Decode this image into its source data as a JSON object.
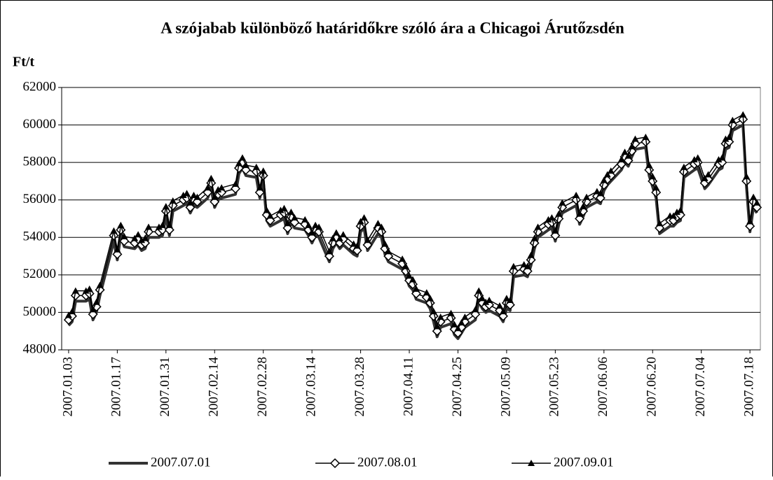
{
  "chart_data": {
    "type": "line",
    "title": "A szójabab különböző határidőkre szóló ára a Chicagoi Árutőzsdén",
    "y_label": "Ft/t",
    "x": [
      "2007.01.03",
      "2007.01.04",
      "2007.01.05",
      "2007.01.08",
      "2007.01.09",
      "2007.01.10",
      "2007.01.11",
      "2007.01.12",
      "2007.01.16",
      "2007.01.17",
      "2007.01.18",
      "2007.01.19",
      "2007.01.22",
      "2007.01.23",
      "2007.01.24",
      "2007.01.25",
      "2007.01.26",
      "2007.01.29",
      "2007.01.30",
      "2007.01.31",
      "2007.02.01",
      "2007.02.02",
      "2007.02.05",
      "2007.02.06",
      "2007.02.07",
      "2007.02.08",
      "2007.02.09",
      "2007.02.12",
      "2007.02.13",
      "2007.02.14",
      "2007.02.15",
      "2007.02.16",
      "2007.02.20",
      "2007.02.21",
      "2007.02.22",
      "2007.02.23",
      "2007.02.26",
      "2007.02.27",
      "2007.02.28",
      "2007.03.01",
      "2007.03.02",
      "2007.03.05",
      "2007.03.06",
      "2007.03.07",
      "2007.03.08",
      "2007.03.09",
      "2007.03.12",
      "2007.03.13",
      "2007.03.14",
      "2007.03.15",
      "2007.03.16",
      "2007.03.19",
      "2007.03.20",
      "2007.03.21",
      "2007.03.22",
      "2007.03.23",
      "2007.03.26",
      "2007.03.27",
      "2007.03.28",
      "2007.03.29",
      "2007.03.30",
      "2007.04.02",
      "2007.04.03",
      "2007.04.04",
      "2007.04.05",
      "2007.04.09",
      "2007.04.10",
      "2007.04.11",
      "2007.04.12",
      "2007.04.13",
      "2007.04.16",
      "2007.04.17",
      "2007.04.18",
      "2007.04.19",
      "2007.04.20",
      "2007.04.23",
      "2007.04.24",
      "2007.04.25",
      "2007.04.26",
      "2007.04.27",
      "2007.04.30",
      "2007.05.01",
      "2007.05.02",
      "2007.05.03",
      "2007.05.04",
      "2007.05.07",
      "2007.05.08",
      "2007.05.09",
      "2007.05.10",
      "2007.05.11",
      "2007.05.14",
      "2007.05.15",
      "2007.05.16",
      "2007.05.17",
      "2007.05.18",
      "2007.05.21",
      "2007.05.22",
      "2007.05.23",
      "2007.05.24",
      "2007.05.25",
      "2007.05.29",
      "2007.05.30",
      "2007.05.31",
      "2007.06.01",
      "2007.06.04",
      "2007.06.05",
      "2007.06.06",
      "2007.06.07",
      "2007.06.08",
      "2007.06.11",
      "2007.06.12",
      "2007.06.13",
      "2007.06.14",
      "2007.06.15",
      "2007.06.18",
      "2007.06.19",
      "2007.06.20",
      "2007.06.21",
      "2007.06.22",
      "2007.06.25",
      "2007.06.26",
      "2007.06.27",
      "2007.06.28",
      "2007.06.29",
      "2007.07.02",
      "2007.07.03",
      "2007.07.05",
      "2007.07.06",
      "2007.07.09",
      "2007.07.10",
      "2007.07.11",
      "2007.07.12",
      "2007.07.13",
      "2007.07.16",
      "2007.07.17",
      "2007.07.18",
      "2007.07.19",
      "2007.07.20"
    ],
    "series": [
      {
        "name": "2007.07.01",
        "color": "#333333",
        "width": 4,
        "marker": null,
        "values": [
          49300,
          49500,
          50600,
          50600,
          50700,
          49600,
          50000,
          50900,
          53800,
          52800,
          54100,
          53500,
          53400,
          53600,
          53300,
          53400,
          54000,
          54000,
          54100,
          55100,
          54100,
          55400,
          55700,
          55800,
          55300,
          55700,
          55600,
          56100,
          56600,
          55600,
          56000,
          56100,
          56300,
          57400,
          57700,
          57300,
          57200,
          56100,
          57000,
          54900,
          54600,
          54900,
          55000,
          54200,
          54800,
          54500,
          54400,
          54100,
          53700,
          54100,
          54000,
          52700,
          53400,
          53700,
          53400,
          53600,
          53100,
          53000,
          54300,
          54500,
          53300,
          54200,
          54000,
          53100,
          52700,
          52300,
          51900,
          51400,
          51200,
          50700,
          50500,
          50200,
          49500,
          48700,
          49200,
          49400,
          48800,
          48600,
          48900,
          49200,
          49600,
          50600,
          50200,
          50000,
          50100,
          49800,
          49500,
          50200,
          50100,
          51900,
          52000,
          51900,
          52500,
          53400,
          54000,
          54400,
          54500,
          53800,
          54700,
          55300,
          55700,
          54700,
          55100,
          55600,
          55900,
          55800,
          56500,
          56800,
          57000,
          57600,
          58000,
          57800,
          58300,
          58700,
          58800,
          57300,
          56700,
          56100,
          54200,
          54600,
          54600,
          54800,
          54900,
          57200,
          57600,
          57700,
          56600,
          56800,
          57600,
          57700,
          58700,
          58800,
          59700,
          60000,
          56700,
          54300,
          55600,
          55300
        ]
      },
      {
        "name": "2007.08.01",
        "color": "#000000",
        "width": 1.5,
        "marker": "diamond",
        "values": [
          49600,
          49800,
          50900,
          50900,
          51000,
          49900,
          50300,
          51200,
          54100,
          53100,
          54400,
          53800,
          53700,
          53900,
          53600,
          53700,
          54300,
          54300,
          54400,
          55400,
          54400,
          55700,
          56000,
          56100,
          55600,
          56000,
          55900,
          56400,
          56900,
          55900,
          56300,
          56400,
          56600,
          57700,
          58000,
          57600,
          57500,
          56400,
          57300,
          55200,
          54900,
          55200,
          55300,
          54500,
          55100,
          54800,
          54700,
          54400,
          54000,
          54400,
          54300,
          53000,
          53700,
          54000,
          53700,
          53900,
          53400,
          53300,
          54600,
          54800,
          53600,
          54500,
          54300,
          53400,
          53000,
          52600,
          52200,
          51700,
          51500,
          51000,
          50800,
          50500,
          49800,
          49000,
          49500,
          49700,
          49100,
          48900,
          49200,
          49500,
          49900,
          50900,
          50500,
          50300,
          50400,
          50100,
          49800,
          50500,
          50400,
          52200,
          52300,
          52200,
          52800,
          53700,
          54300,
          54700,
          54800,
          54100,
          55000,
          55600,
          56000,
          55000,
          55400,
          55900,
          56200,
          56100,
          56800,
          57100,
          57300,
          57900,
          58300,
          58100,
          58600,
          59000,
          59100,
          57600,
          57000,
          56400,
          54500,
          54900,
          54900,
          55100,
          55200,
          57500,
          57900,
          58000,
          56900,
          57100,
          57900,
          58000,
          59000,
          59100,
          60000,
          60300,
          57000,
          54600,
          55900,
          55600
        ]
      },
      {
        "name": "2007.09.01",
        "color": "#000000",
        "width": 1.5,
        "marker": "triangle",
        "values": [
          49850,
          50050,
          51150,
          51150,
          51250,
          50150,
          50550,
          51450,
          54350,
          53350,
          54650,
          54050,
          53950,
          54150,
          53850,
          53950,
          54550,
          54550,
          54650,
          55650,
          54650,
          55950,
          56250,
          56350,
          55850,
          56250,
          56150,
          56650,
          57150,
          56150,
          56550,
          56650,
          56850,
          57950,
          58250,
          57850,
          57750,
          56650,
          57550,
          55450,
          55150,
          55450,
          55550,
          54750,
          55350,
          55050,
          54950,
          54650,
          54250,
          54650,
          54550,
          53250,
          53950,
          54250,
          53950,
          54150,
          53650,
          53550,
          54850,
          55050,
          53850,
          54750,
          54550,
          53650,
          53250,
          52850,
          52450,
          51950,
          51750,
          51250,
          51050,
          50750,
          50050,
          49250,
          49750,
          49950,
          49350,
          49150,
          49450,
          49750,
          50150,
          51150,
          50750,
          50550,
          50650,
          50350,
          50050,
          50750,
          50650,
          52450,
          52550,
          52450,
          53050,
          53950,
          54550,
          54950,
          55050,
          54350,
          55250,
          55850,
          56250,
          55250,
          55650,
          56150,
          56450,
          56350,
          57050,
          57350,
          57550,
          58150,
          58550,
          58350,
          58850,
          59250,
          59350,
          57850,
          57250,
          56650,
          54750,
          55150,
          55150,
          55350,
          55450,
          57750,
          58150,
          58250,
          57150,
          57350,
          58150,
          58250,
          59250,
          59350,
          60250,
          60550,
          57250,
          54850,
          56150,
          55850
        ]
      }
    ],
    "xlim": [
      "2007.01.01",
      "2007.07.21"
    ],
    "xticks": [
      "2007.01.03",
      "2007.01.17",
      "2007.01.31",
      "2007.02.14",
      "2007.02.28",
      "2007.03.14",
      "2007.03.28",
      "2007.04.11",
      "2007.04.25",
      "2007.05.09",
      "2007.05.23",
      "2007.06.06",
      "2007.06.20",
      "2007.07.04",
      "2007.07.18"
    ],
    "ylim": [
      48000,
      62000
    ],
    "yticks": [
      48000,
      50000,
      52000,
      54000,
      56000,
      58000,
      60000,
      62000
    ],
    "grid": true,
    "legend": "bottom"
  }
}
